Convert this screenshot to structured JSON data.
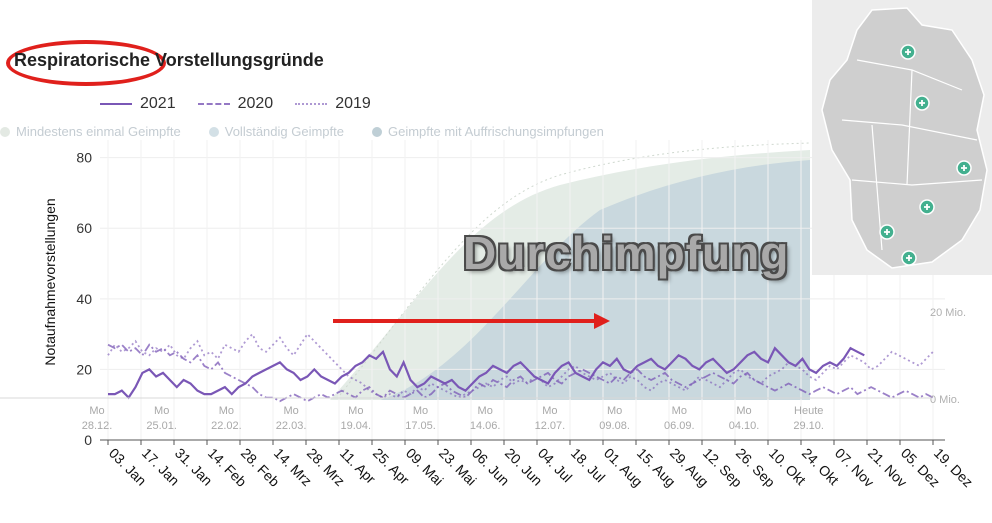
{
  "title": "Respiratorische Vorstellungsgründe",
  "legend": [
    {
      "label": "2021",
      "style": "solid"
    },
    {
      "label": "2020",
      "style": "dashdot"
    },
    {
      "label": "2019",
      "style": "dot"
    }
  ],
  "overlay": {
    "legend": [
      "Mindestens einmal Geimpfte",
      "Vollständig Geimpfte",
      "Geimpfte mit Auffrischungsimpfungen"
    ],
    "legend_colors": [
      "#e3e9e3",
      "#d3e0e6",
      "#bfcfd6"
    ],
    "right_axis_labels": [
      "20 Mio.",
      "0 Mio."
    ],
    "date_labels": [
      {
        "day": "Mo",
        "date": "28.12."
      },
      {
        "day": "Mo",
        "date": "25.01."
      },
      {
        "day": "Mo",
        "date": "22.02."
      },
      {
        "day": "Mo",
        "date": "22.03."
      },
      {
        "day": "Mo",
        "date": "19.04."
      },
      {
        "day": "Mo",
        "date": "17.05."
      },
      {
        "day": "Mo",
        "date": "14.06."
      },
      {
        "day": "Mo",
        "date": "12.07."
      },
      {
        "day": "Mo",
        "date": "09.08."
      },
      {
        "day": "Mo",
        "date": "06.09."
      },
      {
        "day": "Mo",
        "date": "04.10."
      },
      {
        "day": "Heute",
        "date": "29.10."
      }
    ]
  },
  "annotation_text": "Durchimpfung",
  "colors": {
    "series": "#7a57b6",
    "arrow": "#e0201c",
    "ring": "#e0201c",
    "vacc_fill_full": "#c9d8de",
    "vacc_fill_first": "#e4ece6"
  },
  "chart_data": {
    "type": "line",
    "ylabel": "Notaufnahmevorstellungen",
    "ylim": [
      0,
      85
    ],
    "yticks": [
      0,
      20,
      40,
      60,
      80
    ],
    "x_tick_labels": [
      "03. Jan",
      "17. Jan",
      "31. Jan",
      "14. Feb",
      "28. Feb",
      "14. Mrz",
      "28. Mrz",
      "11. Apr",
      "25. Apr",
      "09. Mai",
      "23. Mai",
      "06. Jun",
      "20. Jun",
      "04. Jul",
      "18. Jul",
      "01. Aug",
      "15. Aug",
      "29. Aug",
      "12. Sep",
      "26. Sep",
      "10. Okt",
      "24. Okt",
      "07. Nov",
      "21. Nov",
      "05. Dez",
      "19. Dez"
    ],
    "series": [
      {
        "name": "2021",
        "week": [
          0,
          1,
          2,
          3,
          4,
          5,
          6,
          7,
          8,
          9,
          10,
          11,
          12,
          13,
          14,
          15,
          16,
          17,
          18,
          19,
          20,
          21,
          22,
          23,
          24,
          25,
          26,
          27,
          28,
          29,
          30,
          31,
          32,
          33,
          34,
          35,
          36,
          37,
          38,
          39,
          40,
          41,
          42,
          43,
          44,
          45,
          46,
          47,
          48,
          49,
          50,
          51,
          52,
          53,
          54,
          55,
          56,
          57,
          58,
          59,
          60,
          61,
          62,
          63,
          64,
          65,
          66,
          67,
          68,
          69,
          70,
          71,
          72,
          73,
          74,
          75,
          76,
          77,
          78,
          79,
          80,
          81,
          82,
          83,
          84,
          85,
          86,
          87,
          88,
          89,
          90,
          91,
          92,
          93,
          94,
          95,
          96,
          97,
          98,
          99,
          100,
          101,
          102,
          103,
          104,
          105,
          106,
          107,
          108,
          109,
          110,
          111,
          112,
          113,
          114,
          115,
          116,
          117,
          118,
          119,
          120
        ],
        "values": [
          13,
          13,
          14,
          12,
          15,
          19,
          20,
          18,
          19,
          17,
          15,
          17,
          16,
          14,
          13,
          13,
          14,
          15,
          13,
          15,
          16,
          18,
          19,
          20,
          21,
          22,
          20,
          19,
          17,
          18,
          20,
          18,
          17,
          16,
          18,
          19,
          21,
          22,
          24,
          23,
          25,
          20,
          18,
          22,
          17,
          15,
          16,
          18,
          17,
          16,
          17,
          15,
          14,
          16,
          18,
          19,
          21,
          20,
          19,
          21,
          22,
          20,
          18,
          17,
          16,
          19,
          21,
          22,
          19,
          18,
          17,
          20,
          22,
          21,
          23,
          20,
          19,
          21,
          22,
          23,
          21,
          20,
          22,
          24,
          23,
          21,
          20,
          22,
          23,
          21,
          19,
          20,
          22,
          24,
          25,
          23,
          22,
          26,
          24,
          22,
          21,
          23,
          20,
          19,
          21,
          22,
          21,
          23,
          26,
          25,
          24,
          null,
          null,
          null,
          null,
          null,
          null,
          null,
          null,
          null,
          null
        ]
      },
      {
        "name": "2020",
        "values": [
          27,
          26,
          27,
          25,
          26,
          24,
          27,
          25,
          26,
          24,
          25,
          23,
          22,
          24,
          21,
          20,
          22,
          19,
          18,
          17,
          16,
          15,
          13,
          12,
          12,
          11,
          12,
          13,
          12,
          11,
          12,
          13,
          12,
          13,
          14,
          13,
          12,
          14,
          15,
          13,
          12,
          14,
          13,
          12,
          13,
          14,
          12,
          13,
          15,
          16,
          14,
          13,
          12,
          14,
          16,
          15,
          17,
          16,
          15,
          17,
          18,
          16,
          17,
          18,
          19,
          17,
          16,
          18,
          19,
          20,
          19,
          18,
          17,
          16,
          18,
          17,
          19,
          20,
          18,
          17,
          18,
          19,
          17,
          16,
          15,
          16,
          17,
          18,
          19,
          18,
          17,
          16,
          18,
          19,
          17,
          16,
          15,
          14,
          15,
          16,
          15,
          14,
          13,
          14,
          15,
          14,
          13,
          14,
          15,
          13,
          14,
          15,
          14,
          13,
          12,
          13,
          14,
          13,
          12,
          13,
          12
        ]
      },
      {
        "name": "2019",
        "values": [
          24,
          27,
          25,
          26,
          28,
          25,
          24,
          26,
          25,
          27,
          24,
          23,
          26,
          28,
          24,
          25,
          23,
          27,
          26,
          25,
          28,
          30,
          26,
          25,
          27,
          29,
          26,
          24,
          27,
          30,
          28,
          26,
          24,
          22,
          20,
          18,
          17,
          16,
          14,
          13,
          12,
          13,
          12,
          14,
          13,
          15,
          14,
          16,
          15,
          14,
          13,
          12,
          13,
          14,
          15,
          16,
          15,
          17,
          18,
          16,
          17,
          16,
          18,
          17,
          15,
          16,
          18,
          20,
          21,
          19,
          18,
          17,
          18,
          19,
          17,
          16,
          18,
          17,
          15,
          14,
          16,
          17,
          16,
          15,
          14,
          16,
          18,
          17,
          16,
          15,
          17,
          19,
          20,
          18,
          17,
          16,
          18,
          19,
          20,
          22,
          21,
          20,
          18,
          17,
          19,
          21,
          20,
          22,
          24,
          23,
          22,
          20,
          21,
          23,
          25,
          24,
          23,
          22,
          21,
          23,
          25
        ]
      }
    ]
  }
}
